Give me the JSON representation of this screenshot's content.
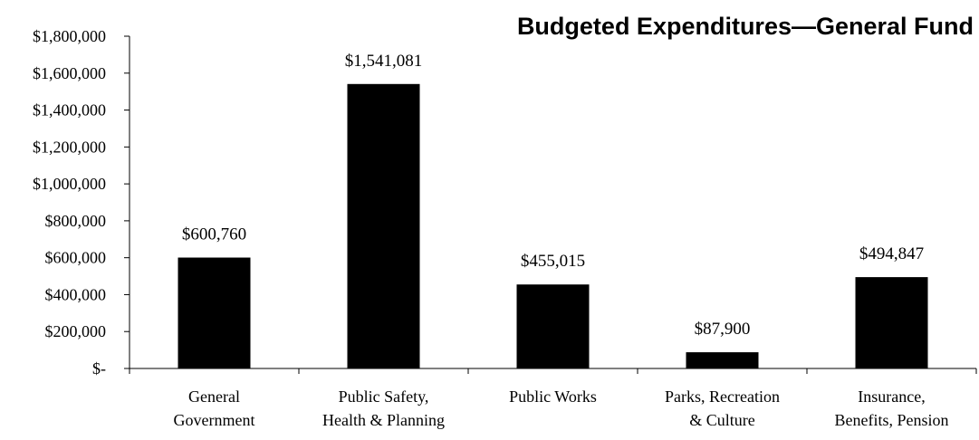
{
  "chart_data": {
    "type": "bar",
    "title": "Budgeted Expenditures—General Fund",
    "xlabel": "",
    "ylabel": "",
    "ylim": [
      0,
      1800000
    ],
    "yticks": [
      0,
      200000,
      400000,
      600000,
      800000,
      1000000,
      1200000,
      1400000,
      1600000,
      1800000
    ],
    "ytick_labels": [
      "$-",
      "$200,000",
      "$400,000",
      "$600,000",
      "$800,000",
      "$1,000,000",
      "$1,200,000",
      "$1,400,000",
      "$1,600,000",
      "$1,800,000"
    ],
    "categories": [
      [
        "General",
        "Government"
      ],
      [
        "Public Safety,",
        "Health & Planning"
      ],
      [
        "Public Works"
      ],
      [
        "Parks, Recreation",
        "& Culture"
      ],
      [
        "Insurance,",
        "Benefits, Pension"
      ]
    ],
    "values": [
      600760,
      1541081,
      455015,
      87900,
      494847
    ],
    "data_labels": [
      "$600,760",
      "$1,541,081",
      "$455,015",
      "$87,900",
      "$494,847"
    ],
    "bar_color": "#000000",
    "grid": false,
    "legend": "none"
  }
}
